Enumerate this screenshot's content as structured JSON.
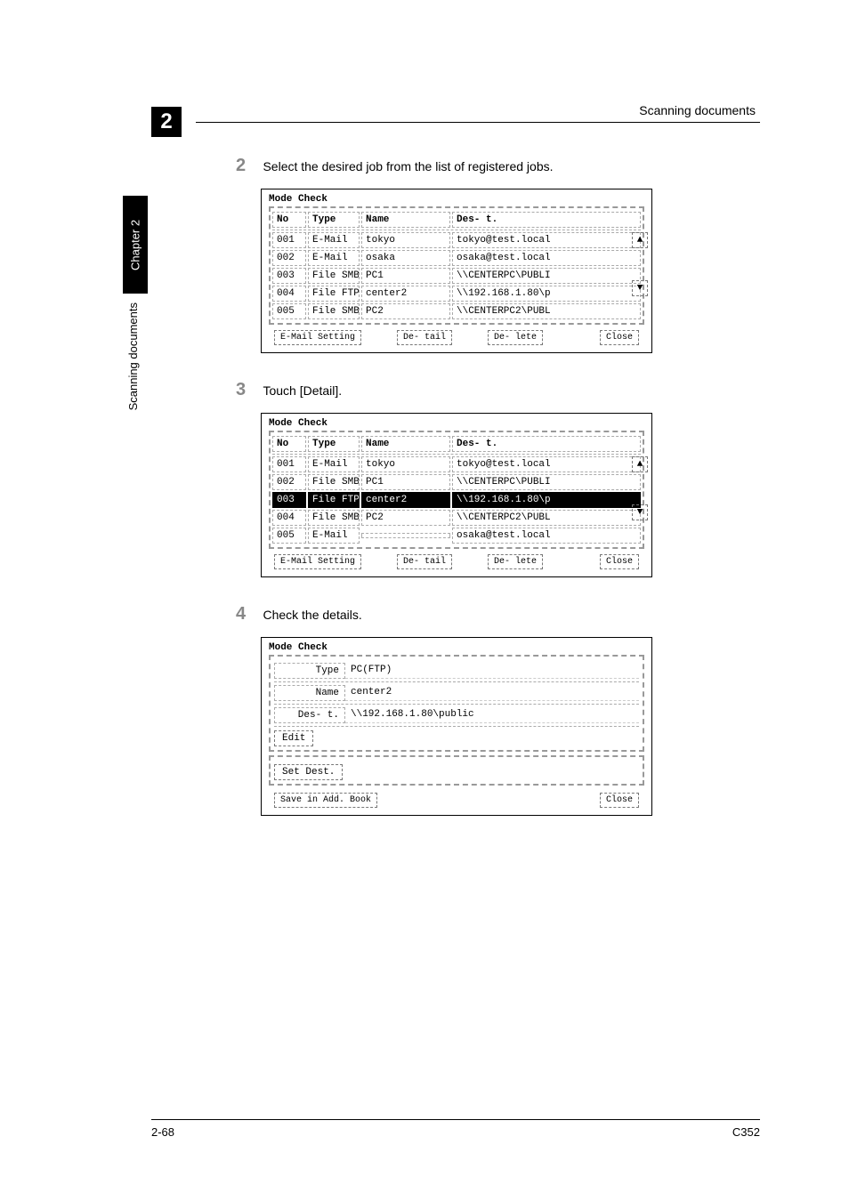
{
  "header": {
    "chapter_num": "2",
    "right_text": "Scanning documents",
    "side_tab": "Chapter 2",
    "side_text": "Scanning documents"
  },
  "steps": {
    "s2": {
      "num": "2",
      "text": "Select the desired job from the list of registered jobs."
    },
    "s3": {
      "num": "3",
      "text": "Touch [Detail]."
    },
    "s4": {
      "num": "4",
      "text": "Check the details."
    }
  },
  "panel_title": "Mode\nCheck",
  "columns": {
    "no": "No",
    "type": "Type",
    "name": "Name",
    "dest": "Des-\nt."
  },
  "panel1": {
    "rows": [
      {
        "no": "001",
        "type": "E-Mail",
        "name": "tokyo",
        "dest": "tokyo@test.local"
      },
      {
        "no": "002",
        "type": "E-Mail",
        "name": "osaka",
        "dest": "osaka@test.local"
      },
      {
        "no": "003",
        "type": "File\nSMB",
        "name": "PC1",
        "dest": "\\\\CENTERPC\\PUBLI"
      },
      {
        "no": "004",
        "type": "File\nFTP",
        "name": "center2",
        "dest": "\\\\192.168.1.80\\p"
      },
      {
        "no": "005",
        "type": "File\nSMB",
        "name": "PC2",
        "dest": "\\\\CENTERPC2\\PUBL"
      }
    ],
    "selected_index": -1
  },
  "panel2": {
    "rows": [
      {
        "no": "001",
        "type": "E-Mail",
        "name": "tokyo",
        "dest": "tokyo@test.local"
      },
      {
        "no": "002",
        "type": "File\nSMB",
        "name": "PC1",
        "dest": "\\\\CENTERPC\\PUBLI"
      },
      {
        "no": "003",
        "type": "File\nFTP",
        "name": "center2",
        "dest": "\\\\192.168.1.80\\p"
      },
      {
        "no": "004",
        "type": "File\nSMB",
        "name": "PC2",
        "dest": "\\\\CENTERPC2\\PUBL"
      },
      {
        "no": "005",
        "type": "E-Mail",
        "name": "",
        "dest": "osaka@test.local"
      }
    ],
    "selected_index": 2
  },
  "buttons": {
    "email_setting": "E-Mail\nSetting",
    "detail": "De-\ntail",
    "delete": "De-\nlete",
    "close": "Close",
    "edit": "Edit",
    "set_dest": "Set\nDest.",
    "save_addr": "Save in\nAdd. Book"
  },
  "arrows": {
    "up": "▲",
    "down": "▼"
  },
  "panel3": {
    "type_label": "Type",
    "type_value": "PC(FTP)",
    "name_label": "Name",
    "name_value": "center2",
    "dest_label": "Des-\nt.",
    "dest_value": "\\\\192.168.1.80\\public"
  },
  "footer": {
    "left": "2-68",
    "right": "C352"
  }
}
